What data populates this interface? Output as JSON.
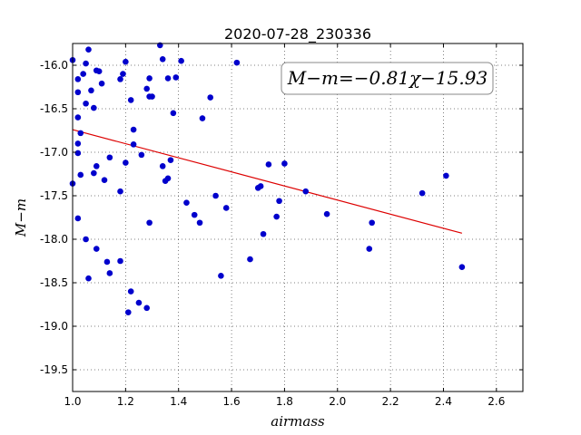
{
  "chart_data": {
    "type": "scatter",
    "title": "2020-07-28_230336",
    "xlabel": "airmass",
    "ylabel": "M−m",
    "xlim": [
      1.0,
      2.7
    ],
    "ylim": [
      -15.75,
      -19.75
    ],
    "xticks": [
      "1.0",
      "1.2",
      "1.4",
      "1.6",
      "1.8",
      "2.0",
      "2.2",
      "2.4",
      "2.6"
    ],
    "yticks": [
      "-16.0",
      "-16.5",
      "-17.0",
      "-17.5",
      "-18.0",
      "-18.5",
      "-19.0",
      "-19.5"
    ],
    "grid": true,
    "annotation": "M−m=−0.81χ−15.93",
    "annotation_position": "top-right",
    "point_color": "#0000cc",
    "fit_color": "#dd0000",
    "fit_line": {
      "slope": -0.81,
      "intercept": -15.93,
      "x_range": [
        1.0,
        2.47
      ]
    },
    "points": [
      [
        1.0,
        -15.94
      ],
      [
        1.06,
        -15.82
      ],
      [
        1.02,
        -16.16
      ],
      [
        1.04,
        -16.1
      ],
      [
        1.05,
        -15.98
      ],
      [
        1.02,
        -16.31
      ],
      [
        1.07,
        -16.29
      ],
      [
        1.05,
        -16.44
      ],
      [
        1.08,
        -16.49
      ],
      [
        1.09,
        -16.06
      ],
      [
        1.1,
        -16.07
      ],
      [
        1.11,
        -16.21
      ],
      [
        1.02,
        -16.6
      ],
      [
        1.03,
        -16.78
      ],
      [
        1.02,
        -16.9
      ],
      [
        1.02,
        -17.01
      ],
      [
        1.0,
        -17.36
      ],
      [
        1.03,
        -17.26
      ],
      [
        1.08,
        -17.24
      ],
      [
        1.09,
        -17.16
      ],
      [
        1.12,
        -17.32
      ],
      [
        1.14,
        -17.06
      ],
      [
        1.18,
        -16.16
      ],
      [
        1.19,
        -16.1
      ],
      [
        1.2,
        -15.96
      ],
      [
        1.2,
        -17.12
      ],
      [
        1.18,
        -17.45
      ],
      [
        1.22,
        -16.4
      ],
      [
        1.23,
        -16.74
      ],
      [
        1.23,
        -16.91
      ],
      [
        1.26,
        -17.03
      ],
      [
        1.28,
        -16.27
      ],
      [
        1.29,
        -16.36
      ],
      [
        1.29,
        -16.15
      ],
      [
        1.3,
        -16.36
      ],
      [
        1.33,
        -15.77
      ],
      [
        1.34,
        -15.93
      ],
      [
        1.36,
        -16.15
      ],
      [
        1.38,
        -16.55
      ],
      [
        1.39,
        -16.14
      ],
      [
        1.41,
        -15.95
      ],
      [
        1.34,
        -17.16
      ],
      [
        1.36,
        -17.3
      ],
      [
        1.37,
        -17.09
      ],
      [
        1.35,
        -17.33
      ],
      [
        1.49,
        -16.61
      ],
      [
        1.52,
        -16.37
      ],
      [
        1.62,
        -15.97
      ],
      [
        1.02,
        -17.76
      ],
      [
        1.05,
        -18.0
      ],
      [
        1.09,
        -18.11
      ],
      [
        1.06,
        -18.45
      ],
      [
        1.13,
        -18.26
      ],
      [
        1.14,
        -18.39
      ],
      [
        1.18,
        -18.25
      ],
      [
        1.22,
        -18.6
      ],
      [
        1.25,
        -18.73
      ],
      [
        1.21,
        -18.84
      ],
      [
        1.28,
        -18.79
      ],
      [
        1.29,
        -17.81
      ],
      [
        1.43,
        -17.58
      ],
      [
        1.46,
        -17.72
      ],
      [
        1.48,
        -17.81
      ],
      [
        1.54,
        -17.5
      ],
      [
        1.58,
        -17.64
      ],
      [
        1.56,
        -18.42
      ],
      [
        1.67,
        -18.23
      ],
      [
        1.7,
        -17.41
      ],
      [
        1.71,
        -17.39
      ],
      [
        1.72,
        -17.94
      ],
      [
        1.74,
        -17.14
      ],
      [
        1.77,
        -17.74
      ],
      [
        1.78,
        -17.56
      ],
      [
        1.8,
        -17.13
      ],
      [
        1.88,
        -17.45
      ],
      [
        1.96,
        -17.71
      ],
      [
        2.12,
        -18.11
      ],
      [
        2.13,
        -17.81
      ],
      [
        2.32,
        -17.47
      ],
      [
        2.41,
        -17.27
      ],
      [
        2.47,
        -18.32
      ]
    ]
  }
}
